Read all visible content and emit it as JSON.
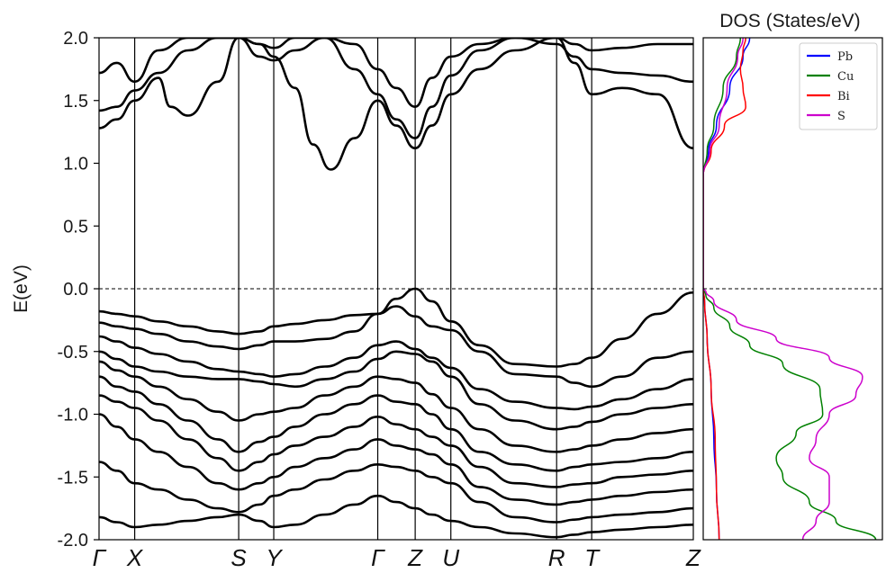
{
  "chart_data": [
    {
      "type": "line",
      "title": "",
      "ylabel": "E(eV)",
      "ylim": [
        -2.0,
        2.0
      ],
      "yticks": [
        "2.0",
        "1.5",
        "1.0",
        "0.5",
        "0.0",
        "-0.5",
        "-1.0",
        "-1.5",
        "-2.0"
      ],
      "ytick_values": [
        2.0,
        1.5,
        1.0,
        0.5,
        0.0,
        -0.5,
        -1.0,
        -1.5,
        -2.0
      ],
      "kpoints": [
        {
          "label": "Γ",
          "x": 0.0
        },
        {
          "label": "X",
          "x": 0.06
        },
        {
          "label": "S",
          "x": 0.235
        },
        {
          "label": "Y",
          "x": 0.294
        },
        {
          "label": "Γ",
          "x": 0.469
        },
        {
          "label": "Z",
          "x": 0.532
        },
        {
          "label": "U",
          "x": 0.592
        },
        {
          "label": "R",
          "x": 0.77
        },
        {
          "label": "T",
          "x": 0.829
        },
        {
          "label": "Z",
          "x": 1.0
        }
      ],
      "fermi_level": 0.0,
      "bands": [
        {
          "x": [
            0,
            0.03,
            0.06,
            0.1,
            0.15,
            0.2,
            0.235,
            0.27,
            0.294,
            0.33,
            0.38,
            0.43,
            0.469,
            0.5,
            0.532,
            0.56,
            0.592,
            0.64,
            0.7,
            0.77,
            0.8,
            0.829,
            0.88,
            0.94,
            1.0
          ],
          "y": [
            -0.18,
            -0.2,
            -0.22,
            -0.26,
            -0.3,
            -0.34,
            -0.36,
            -0.34,
            -0.3,
            -0.28,
            -0.25,
            -0.21,
            -0.2,
            -0.08,
            0.0,
            -0.1,
            -0.26,
            -0.45,
            -0.6,
            -0.62,
            -0.6,
            -0.55,
            -0.4,
            -0.2,
            -0.03
          ]
        },
        {
          "x": [
            0,
            0.03,
            0.06,
            0.1,
            0.15,
            0.2,
            0.235,
            0.27,
            0.294,
            0.33,
            0.38,
            0.43,
            0.469,
            0.5,
            0.532,
            0.56,
            0.592,
            0.64,
            0.7,
            0.77,
            0.8,
            0.829,
            0.88,
            0.94,
            1.0
          ],
          "y": [
            -0.27,
            -0.3,
            -0.32,
            -0.36,
            -0.42,
            -0.46,
            -0.48,
            -0.45,
            -0.42,
            -0.42,
            -0.4,
            -0.34,
            -0.2,
            -0.14,
            -0.22,
            -0.3,
            -0.33,
            -0.5,
            -0.68,
            -0.7,
            -0.75,
            -0.78,
            -0.7,
            -0.55,
            -0.5
          ]
        },
        {
          "x": [
            0,
            0.03,
            0.06,
            0.1,
            0.15,
            0.2,
            0.235,
            0.27,
            0.294,
            0.33,
            0.38,
            0.43,
            0.469,
            0.5,
            0.532,
            0.56,
            0.592,
            0.64,
            0.7,
            0.77,
            0.8,
            0.829,
            0.88,
            0.94,
            1.0
          ],
          "y": [
            -0.38,
            -0.42,
            -0.47,
            -0.52,
            -0.58,
            -0.64,
            -0.66,
            -0.68,
            -0.7,
            -0.68,
            -0.62,
            -0.55,
            -0.45,
            -0.42,
            -0.48,
            -0.55,
            -0.63,
            -0.8,
            -0.9,
            -0.95,
            -0.96,
            -0.94,
            -0.88,
            -0.8,
            -0.72
          ]
        },
        {
          "x": [
            0,
            0.03,
            0.06,
            0.1,
            0.15,
            0.2,
            0.235,
            0.27,
            0.294,
            0.33,
            0.38,
            0.43,
            0.469,
            0.5,
            0.532,
            0.56,
            0.592,
            0.64,
            0.7,
            0.77,
            0.8,
            0.829,
            0.88,
            0.94,
            1.0
          ],
          "y": [
            -0.5,
            -0.56,
            -0.62,
            -0.66,
            -0.7,
            -0.72,
            -0.72,
            -0.74,
            -0.76,
            -0.78,
            -0.72,
            -0.66,
            -0.56,
            -0.5,
            -0.52,
            -0.58,
            -0.7,
            -0.92,
            -1.05,
            -1.12,
            -1.1,
            -1.06,
            -1.0,
            -0.95,
            -0.92
          ]
        },
        {
          "x": [
            0,
            0.03,
            0.06,
            0.1,
            0.15,
            0.2,
            0.235,
            0.27,
            0.294,
            0.33,
            0.38,
            0.43,
            0.469,
            0.5,
            0.532,
            0.56,
            0.592,
            0.64,
            0.7,
            0.77,
            0.8,
            0.829,
            0.88,
            0.94,
            1.0
          ],
          "y": [
            -0.58,
            -0.65,
            -0.7,
            -0.78,
            -0.88,
            -0.98,
            -1.05,
            -1.0,
            -0.98,
            -0.95,
            -0.85,
            -0.78,
            -0.7,
            -0.72,
            -0.75,
            -0.84,
            -0.95,
            -1.12,
            -1.25,
            -1.3,
            -1.28,
            -1.25,
            -1.2,
            -1.15,
            -1.12
          ]
        },
        {
          "x": [
            0,
            0.03,
            0.06,
            0.1,
            0.15,
            0.2,
            0.235,
            0.27,
            0.294,
            0.33,
            0.38,
            0.43,
            0.469,
            0.5,
            0.532,
            0.56,
            0.592,
            0.64,
            0.7,
            0.77,
            0.8,
            0.829,
            0.88,
            0.94,
            1.0
          ],
          "y": [
            -0.7,
            -0.78,
            -0.82,
            -0.92,
            -1.05,
            -1.2,
            -1.3,
            -1.22,
            -1.18,
            -1.1,
            -1.0,
            -0.92,
            -0.85,
            -0.9,
            -0.92,
            -1.0,
            -1.12,
            -1.3,
            -1.4,
            -1.45,
            -1.42,
            -1.4,
            -1.38,
            -1.35,
            -1.3
          ]
        },
        {
          "x": [
            0,
            0.03,
            0.06,
            0.1,
            0.15,
            0.2,
            0.235,
            0.27,
            0.294,
            0.33,
            0.38,
            0.43,
            0.469,
            0.5,
            0.532,
            0.56,
            0.592,
            0.64,
            0.7,
            0.77,
            0.8,
            0.829,
            0.88,
            0.94,
            1.0
          ],
          "y": [
            -0.85,
            -0.9,
            -0.95,
            -1.05,
            -1.2,
            -1.35,
            -1.45,
            -1.38,
            -1.32,
            -1.25,
            -1.18,
            -1.1,
            -1.02,
            -1.08,
            -1.12,
            -1.18,
            -1.25,
            -1.42,
            -1.55,
            -1.58,
            -1.56,
            -1.55,
            -1.5,
            -1.48,
            -1.45
          ]
        },
        {
          "x": [
            0,
            0.03,
            0.06,
            0.1,
            0.15,
            0.2,
            0.235,
            0.27,
            0.294,
            0.33,
            0.38,
            0.43,
            0.469,
            0.5,
            0.532,
            0.56,
            0.592,
            0.64,
            0.7,
            0.77,
            0.8,
            0.829,
            0.88,
            0.94,
            1.0
          ],
          "y": [
            -1.0,
            -1.1,
            -1.2,
            -1.3,
            -1.42,
            -1.55,
            -1.6,
            -1.55,
            -1.5,
            -1.42,
            -1.35,
            -1.28,
            -1.2,
            -1.25,
            -1.28,
            -1.32,
            -1.4,
            -1.58,
            -1.68,
            -1.72,
            -1.7,
            -1.68,
            -1.65,
            -1.62,
            -1.6
          ]
        },
        {
          "x": [
            0,
            0.03,
            0.06,
            0.1,
            0.15,
            0.2,
            0.235,
            0.27,
            0.294,
            0.33,
            0.38,
            0.43,
            0.469,
            0.5,
            0.532,
            0.56,
            0.592,
            0.64,
            0.7,
            0.77,
            0.8,
            0.829,
            0.88,
            0.94,
            1.0
          ],
          "y": [
            -1.38,
            -1.45,
            -1.55,
            -1.6,
            -1.68,
            -1.75,
            -1.78,
            -1.72,
            -1.65,
            -1.6,
            -1.52,
            -1.45,
            -1.4,
            -1.42,
            -1.45,
            -1.5,
            -1.55,
            -1.7,
            -1.82,
            -1.86,
            -1.84,
            -1.82,
            -1.8,
            -1.78,
            -1.75
          ]
        },
        {
          "x": [
            0,
            0.03,
            0.06,
            0.1,
            0.15,
            0.2,
            0.235,
            0.27,
            0.294,
            0.33,
            0.38,
            0.43,
            0.469,
            0.5,
            0.532,
            0.56,
            0.592,
            0.64,
            0.7,
            0.77,
            0.8,
            0.829,
            0.88,
            0.94,
            1.0
          ],
          "y": [
            -1.82,
            -1.86,
            -1.9,
            -1.88,
            -1.85,
            -1.82,
            -1.8,
            -1.85,
            -1.9,
            -1.88,
            -1.8,
            -1.72,
            -1.65,
            -1.7,
            -1.75,
            -1.8,
            -1.85,
            -1.9,
            -1.95,
            -1.98,
            -1.96,
            -1.94,
            -1.92,
            -1.9,
            -1.88
          ]
        },
        {
          "x": [
            0,
            0.03,
            0.06,
            0.1,
            0.12,
            0.15,
            0.2,
            0.235,
            0.27,
            0.294,
            0.33,
            0.36,
            0.39,
            0.43,
            0.469,
            0.5,
            0.532,
            0.56,
            0.592,
            0.64,
            0.7,
            0.77,
            0.8,
            0.829,
            0.88,
            0.94,
            1.0
          ],
          "y": [
            1.28,
            1.35,
            1.5,
            1.68,
            1.45,
            1.38,
            1.65,
            2.0,
            1.95,
            1.85,
            1.6,
            1.15,
            0.95,
            1.2,
            1.5,
            1.3,
            1.12,
            1.3,
            1.55,
            1.75,
            1.9,
            2.0,
            1.8,
            1.55,
            1.6,
            1.55,
            1.12
          ]
        },
        {
          "x": [
            0,
            0.03,
            0.06,
            0.1,
            0.15,
            0.2,
            0.235,
            0.27,
            0.294,
            0.33,
            0.38,
            0.43,
            0.469,
            0.5,
            0.532,
            0.56,
            0.592,
            0.64,
            0.7,
            0.77,
            0.8,
            0.829,
            0.88,
            0.94,
            1.0
          ],
          "y": [
            1.42,
            1.45,
            1.58,
            1.72,
            1.9,
            2.0,
            2.0,
            1.85,
            1.82,
            1.9,
            2.0,
            1.75,
            1.55,
            1.35,
            1.2,
            1.45,
            1.7,
            1.9,
            2.0,
            1.95,
            1.85,
            1.75,
            1.72,
            1.7,
            1.65
          ]
        },
        {
          "x": [
            0,
            0.03,
            0.06,
            0.1,
            0.15,
            0.2,
            0.235,
            0.27,
            0.294,
            0.33,
            0.38,
            0.43,
            0.469,
            0.5,
            0.532,
            0.56,
            0.592,
            0.64,
            0.7,
            0.77,
            0.8,
            0.829,
            0.88,
            0.94,
            1.0
          ],
          "y": [
            1.72,
            1.8,
            1.65,
            1.9,
            2.0,
            2.0,
            2.0,
            1.95,
            1.92,
            2.0,
            2.0,
            1.95,
            1.75,
            1.6,
            1.45,
            1.68,
            1.85,
            1.95,
            2.0,
            2.0,
            1.95,
            1.9,
            1.92,
            1.95,
            1.95
          ]
        }
      ]
    },
    {
      "type": "line",
      "title": "DOS (States/eV)",
      "ylim": [
        -2.0,
        2.0
      ],
      "legend_position": "top-right",
      "series": [
        {
          "name": "Pb",
          "color": "#0000ff",
          "e": [
            -2.0,
            -1.6,
            -1.2,
            -0.8,
            -0.4,
            -0.1,
            0.0,
            0.05,
            0.9,
            1.1,
            1.3,
            1.6,
            1.85,
            2.0
          ],
          "values": [
            0.12,
            0.1,
            0.08,
            0.06,
            0.03,
            0.01,
            0.0,
            0.0,
            0.0,
            0.04,
            0.1,
            0.2,
            0.3,
            0.35
          ]
        },
        {
          "name": "Cu",
          "color": "#008000",
          "e": [
            -2.0,
            -1.85,
            -1.7,
            -1.5,
            -1.35,
            -1.15,
            -1.0,
            -0.8,
            -0.6,
            -0.45,
            -0.3,
            -0.15,
            -0.05,
            0.0,
            0.05,
            0.9,
            1.1,
            1.3,
            1.6,
            1.85,
            2.0
          ],
          "values": [
            1.3,
            1.0,
            0.8,
            0.6,
            0.55,
            0.7,
            0.9,
            0.88,
            0.6,
            0.35,
            0.2,
            0.08,
            0.02,
            0.0,
            0.0,
            0.0,
            0.03,
            0.08,
            0.15,
            0.25,
            0.28
          ]
        },
        {
          "name": "Bi",
          "color": "#ff0000",
          "e": [
            -2.0,
            -1.6,
            -1.2,
            -0.8,
            -0.4,
            -0.1,
            0.0,
            0.05,
            0.9,
            1.1,
            1.3,
            1.45,
            1.6,
            1.75,
            1.9,
            2.0
          ],
          "values": [
            0.12,
            0.1,
            0.09,
            0.06,
            0.03,
            0.01,
            0.0,
            0.0,
            0.0,
            0.06,
            0.16,
            0.32,
            0.3,
            0.28,
            0.3,
            0.32
          ]
        },
        {
          "name": "S",
          "color": "#cc00cc",
          "e": [
            -2.0,
            -1.85,
            -1.7,
            -1.5,
            -1.35,
            -1.2,
            -1.0,
            -0.85,
            -0.7,
            -0.55,
            -0.4,
            -0.25,
            -0.1,
            -0.02,
            0.0,
            0.05,
            0.9,
            1.1,
            1.3,
            1.6,
            1.85,
            2.0
          ],
          "values": [
            0.75,
            0.85,
            0.95,
            0.95,
            0.8,
            0.85,
            0.95,
            1.15,
            1.2,
            0.95,
            0.55,
            0.25,
            0.08,
            0.02,
            0.0,
            0.0,
            0.0,
            0.05,
            0.12,
            0.18,
            0.26,
            0.3
          ]
        }
      ]
    }
  ]
}
